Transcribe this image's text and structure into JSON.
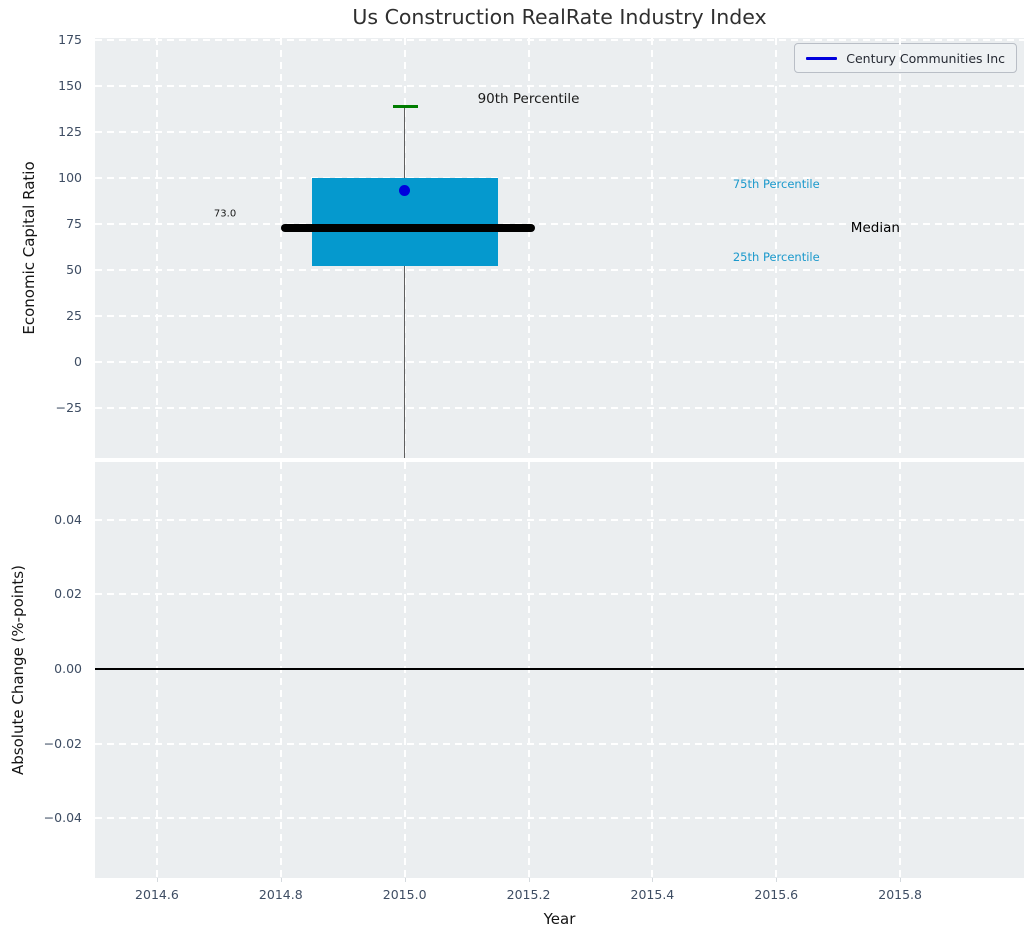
{
  "title": "Us Construction RealRate Industry Index",
  "legend": {
    "label": "Century Communities Inc",
    "line_color": "#0000dd"
  },
  "chart_data": [
    {
      "type": "boxplot",
      "title": "Us Construction RealRate Industry Index",
      "ylabel": "Economic Capital Ratio",
      "xlabel": "",
      "xlim": [
        2014.5,
        2016.0
      ],
      "ylim": [
        -52,
        176
      ],
      "grid": "white dashed, on",
      "legend_position": "upper right",
      "xticks": {
        "values": [
          2014.6,
          2014.8,
          2015.0,
          2015.2,
          2015.4,
          2015.6,
          2015.8
        ],
        "labels": [
          "2014.6",
          "2014.8",
          "2015.0",
          "2015.2",
          "2015.4",
          "2015.6",
          "2015.8"
        ]
      },
      "yticks": {
        "values": [
          175,
          150,
          125,
          100,
          75,
          50,
          25,
          0,
          -25
        ],
        "labels": [
          "175",
          "150",
          "125",
          "100",
          "75",
          "50",
          "25",
          "0",
          "−25"
        ]
      },
      "box": {
        "x_center": 2015.0,
        "box_left": 2014.85,
        "box_right": 2015.15,
        "p90": 139,
        "p75": 100,
        "median": 73.0,
        "p25": 52,
        "p10": null,
        "lower_whisker_clipped": true,
        "median_line_left": 2014.8,
        "median_line_right": 2015.21,
        "cap_left": 2014.981,
        "cap_right": 2015.021
      },
      "series": [
        {
          "name": "Century Communities Inc",
          "type": "point",
          "x": [
            2015.0
          ],
          "y": [
            93
          ]
        }
      ],
      "annotations": [
        {
          "text": "90th Percentile",
          "x": 2015.2,
          "y": 143,
          "color": "#1a1a1a",
          "size": 13.5
        },
        {
          "text": "75th Percentile",
          "x": 2015.6,
          "y": 97,
          "color": "#1b99cc",
          "size": 11.5
        },
        {
          "text": "Median",
          "x": 2015.76,
          "y": 73,
          "color": "#000000",
          "size": 13.5
        },
        {
          "text": "25th Percentile",
          "x": 2015.6,
          "y": 57,
          "color": "#1b99cc",
          "size": 11.5
        },
        {
          "text": "73.0",
          "x": 2014.71,
          "y": 80.5,
          "color": "#1a1a1a",
          "size": 10
        }
      ],
      "colors": {
        "box_fill": "#0599ce",
        "median_line": "#000000",
        "whisker": "#5f5f5f",
        "cap": "#007d00",
        "point": "#0000dd",
        "axes_bg": "#ebeef0",
        "grid": "#ffffff"
      }
    },
    {
      "type": "line",
      "ylabel": "Absolute Change (%-points)",
      "xlabel": "Year",
      "xlim": [
        2014.5,
        2016.0
      ],
      "ylim": [
        -0.056,
        0.0555
      ],
      "grid": "white dashed, on",
      "xticks": {
        "values": [
          2014.6,
          2014.8,
          2015.0,
          2015.2,
          2015.4,
          2015.6,
          2015.8
        ],
        "labels": [
          "2014.6",
          "2014.8",
          "2015.0",
          "2015.2",
          "2015.4",
          "2015.6",
          "2015.8"
        ]
      },
      "yticks": {
        "values": [
          0.04,
          0.02,
          0.0,
          -0.02,
          -0.04
        ],
        "labels": [
          "0.04",
          "0.02",
          "0.00",
          "−0.02",
          "−0.04"
        ]
      },
      "zero_line": 0.0,
      "zero_line_color": "#000000",
      "series": []
    }
  ]
}
